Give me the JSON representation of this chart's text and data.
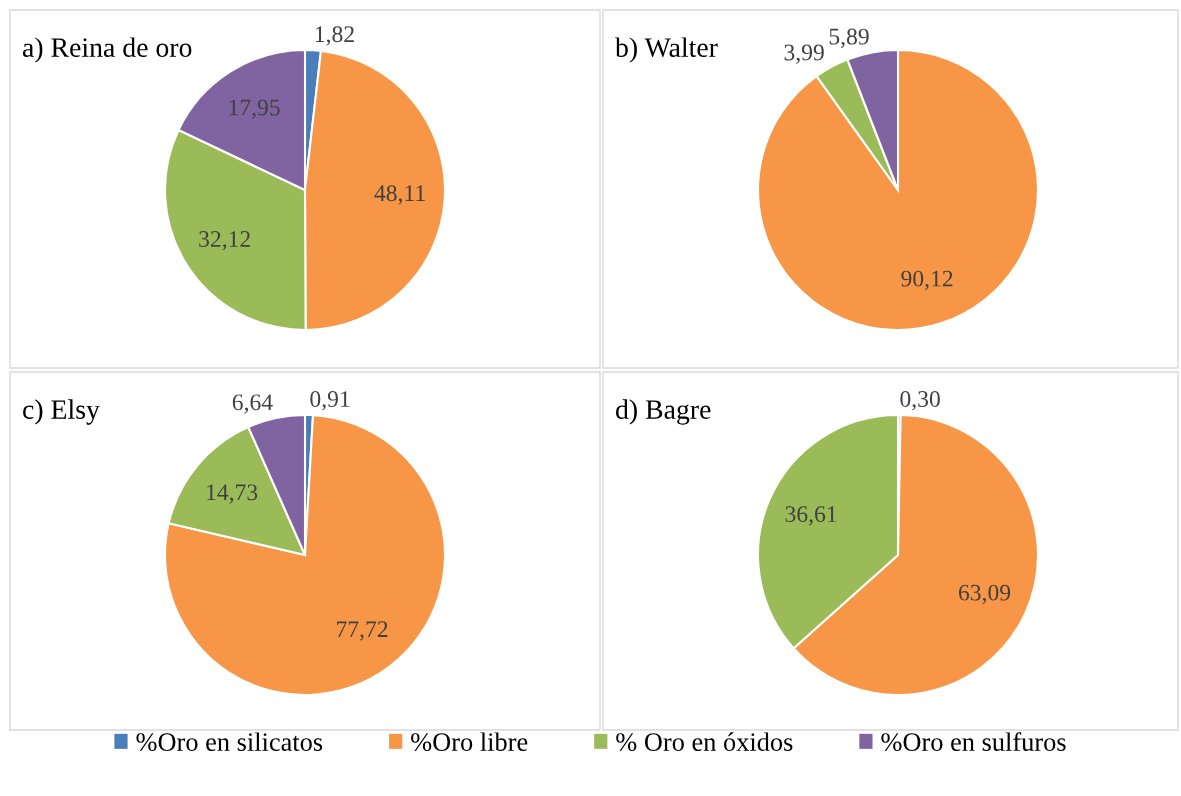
{
  "chart_data": [
    {
      "type": "pie",
      "title": "a) Reina de oro",
      "categories": [
        "%Oro en silicatos",
        "%Oro libre",
        "% Oro en óxidos",
        "%Oro en sulfuros"
      ],
      "values": [
        1.82,
        48.11,
        32.12,
        17.95
      ],
      "value_labels": [
        "1,82",
        "48,11",
        "32,12",
        "17,95"
      ],
      "colors": [
        "#4a7ebb",
        "#f79646",
        "#9bbb59",
        "#8064a2"
      ],
      "legend": "bottom"
    },
    {
      "type": "pie",
      "title": "b) Walter",
      "categories": [
        null,
        null,
        null,
        null
      ],
      "values": [
        null,
        90.12,
        3.99,
        5.89
      ],
      "value_labels": [
        null,
        "90,12",
        "3,99",
        "5,89"
      ],
      "colors": [
        "#4a7ebb",
        "#f79646",
        "#9bbb59",
        "#8064a2"
      ]
    },
    {
      "type": "pie",
      "title": "c) Elsy",
      "categories": [
        null,
        null,
        null,
        null
      ],
      "values": [
        0.91,
        77.72,
        14.73,
        6.64
      ],
      "value_labels": [
        "0,91",
        "77,72",
        "14,73",
        "6,64"
      ],
      "colors": [
        "#4a7ebb",
        "#f79646",
        "#9bbb59",
        "#8064a2"
      ]
    },
    {
      "type": "pie",
      "title": "d) Bagre",
      "categories": [
        null,
        null,
        null,
        null
      ],
      "values": [
        0.3,
        63.09,
        36.61,
        null
      ],
      "value_labels": [
        "0,30",
        "63,09",
        "36,61",
        null
      ],
      "colors": [
        "#4a7ebb",
        "#f79646",
        "#9bbb59",
        "#8064a2"
      ]
    }
  ]
}
